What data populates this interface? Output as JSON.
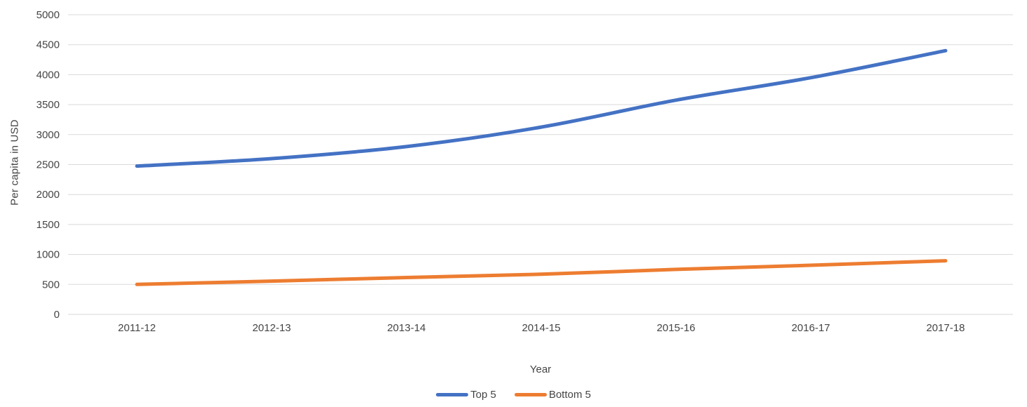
{
  "chart_data": {
    "type": "line",
    "title": "",
    "xlabel": "Year",
    "ylabel": "Per capita in USD",
    "categories": [
      "2011-12",
      "2012-13",
      "2013-14",
      "2014-15",
      "2015-16",
      "2016-17",
      "2017-18"
    ],
    "series": [
      {
        "name": "Top 5",
        "color": "#4472C4",
        "values": [
          2475,
          2600,
          2800,
          3125,
          3575,
          3950,
          4400
        ]
      },
      {
        "name": "Bottom 5",
        "color": "#ED7D31",
        "values": [
          500,
          555,
          615,
          670,
          750,
          820,
          895
        ]
      }
    ],
    "ylim": [
      0,
      5000
    ],
    "yticks": [
      0,
      500,
      1000,
      1500,
      2000,
      2500,
      3000,
      3500,
      4000,
      4500,
      5000
    ],
    "grid": true,
    "gridline_color": "#D9D9D9",
    "tick_label_color": "#454545",
    "line_style": "smooth",
    "legend_position": "bottom"
  }
}
